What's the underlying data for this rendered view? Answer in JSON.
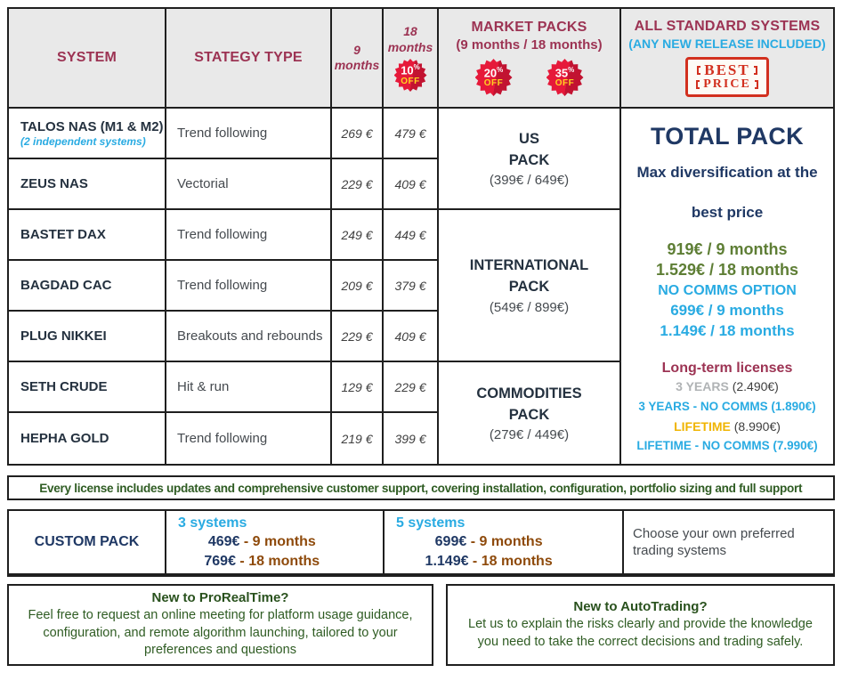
{
  "colors": {
    "maroon": "#9c3353",
    "navy": "#1f3864",
    "dark_slate": "#24313f",
    "cyan": "#29abe2",
    "olive_green": "#5e7e35",
    "dark_green": "#2f5c23",
    "brown": "#8e4a0b",
    "orange": "#f0b400",
    "gray_label": "#b0b3b5",
    "badge_red": "#e11931",
    "stamp_red": "#d2301f",
    "header_bg": "#e9e9e9",
    "border": "#1f1f1f"
  },
  "header": {
    "system": "SYSTEM",
    "strategy": "STATEGY TYPE",
    "m9": "9 months",
    "m18": "18 months",
    "market": "MARKET PACKS",
    "market_sub": "(9 months / 18 months)",
    "all_systems": "ALL STANDARD SYSTEMS",
    "all_systems_sub": "(ANY NEW RELEASE INCLUDED)",
    "badges": [
      {
        "value": "10",
        "symbol": "%",
        "label": "OFF"
      },
      {
        "value": "20",
        "symbol": "%",
        "label": "OFF"
      },
      {
        "value": "35",
        "symbol": "%",
        "label": "OFF"
      }
    ],
    "stamp": {
      "line1": "BEST",
      "line2": "PRICE"
    }
  },
  "systems": [
    {
      "name": "TALOS NAS (M1 & M2)",
      "note": "(2 independent systems)",
      "strategy": "Trend following",
      "p9": "269 €",
      "p18": "479 €"
    },
    {
      "name": "ZEUS NAS",
      "note": "",
      "strategy": "Vectorial",
      "p9": "229 €",
      "p18": "409 €"
    },
    {
      "name": "BASTET DAX",
      "note": "",
      "strategy": "Trend following",
      "p9": "249 €",
      "p18": "449 €"
    },
    {
      "name": "BAGDAD CAC",
      "note": "",
      "strategy": "Trend following",
      "p9": "209 €",
      "p18": "379 €"
    },
    {
      "name": "PLUG NIKKEI",
      "note": "",
      "strategy": "Breakouts and rebounds",
      "p9": "229 €",
      "p18": "409 €"
    },
    {
      "name": "SETH CRUDE",
      "note": "",
      "strategy": "Hit & run",
      "p9": "129 €",
      "p18": "229 €"
    },
    {
      "name": "HEPHA GOLD",
      "note": "",
      "strategy": "Trend following",
      "p9": "219 €",
      "p18": "399 €"
    }
  ],
  "market_packs": [
    {
      "line1": "US",
      "line2": "PACK",
      "prices": "(399€ / 649€)"
    },
    {
      "line1": "INTERNATIONAL",
      "line2": "PACK",
      "prices": "(549€ / 899€)"
    },
    {
      "line1": "COMMODITIES",
      "line2": "PACK",
      "prices": "(279€ / 449€)"
    }
  ],
  "total_pack": {
    "title": "TOTAL PACK",
    "subtitle": "Max diversification at the best price",
    "price9": "919€ / 9 months",
    "price18": "1.529€ / 18 months",
    "no_comms_label": "NO COMMS OPTION",
    "no_comms_price9": "699€ / 9 months",
    "no_comms_price18": "1.149€ / 18 months",
    "longterm_title": "Long-term licenses",
    "years3_label": "3 YEARS",
    "years3_price": " (2.490€)",
    "years3_no_comms": "3 YEARS - NO COMMS (1.890€)",
    "lifetime_label": "LIFETIME",
    "lifetime_price": " (8.990€)",
    "lifetime_no_comms": "LIFETIME - NO COMMS (7.990€)"
  },
  "banner": "Every license includes updates and comprehensive customer support, covering installation, configuration, portfolio sizing and full support",
  "custom_pack": {
    "title": "CUSTOM PACK",
    "options": [
      {
        "header": "3 systems",
        "p9_price": "469€",
        "p9_term": " - 9 months",
        "p18_price": "769€",
        "p18_term": " - 18 months"
      },
      {
        "header": "5 systems",
        "p9_price": "699€",
        "p9_term": " - 9 months",
        "p18_price": "1.149€",
        "p18_term": " - 18 months"
      }
    ],
    "note": "Choose your own preferred trading systems"
  },
  "footer": {
    "prorealtime": {
      "title": "New to ProRealTime?",
      "body": "Feel free to request an online meeting for platform usage guidance, configuration, and remote algorithm launching, tailored to your preferences and questions"
    },
    "autotrading": {
      "title": "New to AutoTrading?",
      "body": "Let us to explain the risks clearly and provide the knowledge you need to take the correct decisions and trading safely."
    }
  }
}
